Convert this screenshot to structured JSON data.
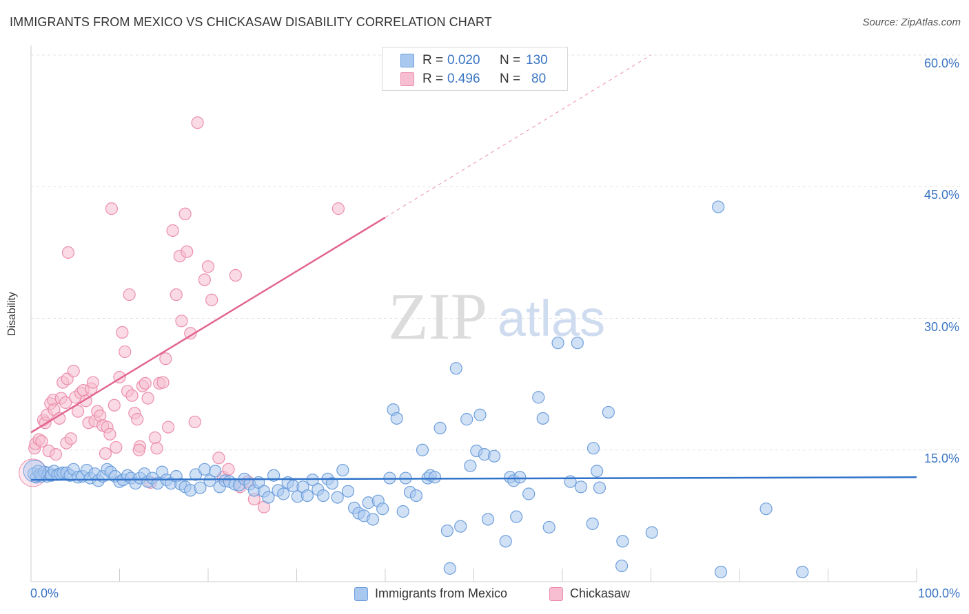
{
  "title": "IMMIGRANTS FROM MEXICO VS CHICKASAW DISABILITY CORRELATION CHART",
  "source": "Source: ZipAtlas.com",
  "colors": {
    "blue_fill": "#a9c8ef",
    "blue_stroke": "#6e9fdc",
    "blue_line": "#2f72c9",
    "pink_fill": "#f6bed0",
    "pink_stroke": "#ec8eac",
    "pink_line": "#e2668f",
    "grid": "#e2e2e2",
    "text_blue": "#3a75c4"
  },
  "legend": {
    "series1": {
      "r_label": "R = ",
      "r_value": "0.020",
      "n_label": "N = ",
      "n_value": "130"
    },
    "series2": {
      "r_label": "R = ",
      "r_value": "0.496",
      "n_label": "N = ",
      "n_value": "80"
    }
  },
  "watermark": {
    "zip": "ZIP",
    "atlas": "atlas"
  },
  "chart_data": {
    "type": "scatter",
    "title": "IMMIGRANTS FROM MEXICO VS CHICKASAW DISABILITY CORRELATION CHART",
    "xlabel": "",
    "ylabel": "Disability",
    "xlim": [
      0,
      100
    ],
    "ylim": [
      0,
      60
    ],
    "x_tick_labels": [
      "0.0%",
      "100.0%"
    ],
    "y_ticks": [
      15,
      30,
      45,
      60
    ],
    "y_tick_labels": [
      "15.0%",
      "30.0%",
      "45.0%",
      "60.0%"
    ],
    "grid": true,
    "legend_position": "top-center",
    "series": [
      {
        "name": "Immigrants from Mexico",
        "color": "blue",
        "R": 0.02,
        "N": 130,
        "trend": {
          "x": [
            0,
            100
          ],
          "y": [
            11.6,
            11.9
          ]
        },
        "points": [
          [
            0.3,
            12.3
          ],
          [
            0.6,
            11.9
          ],
          [
            0.8,
            12.6
          ],
          [
            1.0,
            12.2
          ],
          [
            1.2,
            12.0
          ],
          [
            1.5,
            12.5
          ],
          [
            1.8,
            12.0
          ],
          [
            2.0,
            12.4
          ],
          [
            2.3,
            12.1
          ],
          [
            2.6,
            12.6
          ],
          [
            3.0,
            12.2
          ],
          [
            3.3,
            12.3
          ],
          [
            3.6,
            12.4
          ],
          [
            4.0,
            12.4
          ],
          [
            4.4,
            12.1
          ],
          [
            4.8,
            12.8
          ],
          [
            5.3,
            11.9
          ],
          [
            5.8,
            12.0
          ],
          [
            6.3,
            12.7
          ],
          [
            6.7,
            11.8
          ],
          [
            7.2,
            12.3
          ],
          [
            7.6,
            11.5
          ],
          [
            8.1,
            12.0
          ],
          [
            8.6,
            12.8
          ],
          [
            9.0,
            12.5
          ],
          [
            9.5,
            12.0
          ],
          [
            10.0,
            11.4
          ],
          [
            10.4,
            11.6
          ],
          [
            10.9,
            12.1
          ],
          [
            11.3,
            11.8
          ],
          [
            11.8,
            11.2
          ],
          [
            12.3,
            11.8
          ],
          [
            12.8,
            12.3
          ],
          [
            13.2,
            11.4
          ],
          [
            13.7,
            11.8
          ],
          [
            14.3,
            11.2
          ],
          [
            14.8,
            12.5
          ],
          [
            15.3,
            11.6
          ],
          [
            15.8,
            11.2
          ],
          [
            16.4,
            12.0
          ],
          [
            16.9,
            11.1
          ],
          [
            17.4,
            10.8
          ],
          [
            18.0,
            10.4
          ],
          [
            18.6,
            12.2
          ],
          [
            19.1,
            10.7
          ],
          [
            19.6,
            12.8
          ],
          [
            20.2,
            11.5
          ],
          [
            20.8,
            12.6
          ],
          [
            21.3,
            10.8
          ],
          [
            21.9,
            11.5
          ],
          [
            22.4,
            11.4
          ],
          [
            23.0,
            11.1
          ],
          [
            23.5,
            11.0
          ],
          [
            24.1,
            11.7
          ],
          [
            24.7,
            11.1
          ],
          [
            25.2,
            10.4
          ],
          [
            25.7,
            11.3
          ],
          [
            26.3,
            10.3
          ],
          [
            26.8,
            9.6
          ],
          [
            27.4,
            12.1
          ],
          [
            27.9,
            10.4
          ],
          [
            28.5,
            10.0
          ],
          [
            29.0,
            11.3
          ],
          [
            29.6,
            10.9
          ],
          [
            30.1,
            9.7
          ],
          [
            30.7,
            10.8
          ],
          [
            31.2,
            9.8
          ],
          [
            31.8,
            11.6
          ],
          [
            32.4,
            10.5
          ],
          [
            33.0,
            9.8
          ],
          [
            33.5,
            11.7
          ],
          [
            34.0,
            11.2
          ],
          [
            34.6,
            9.6
          ],
          [
            35.2,
            12.7
          ],
          [
            35.8,
            10.3
          ],
          [
            36.5,
            8.4
          ],
          [
            37.0,
            7.8
          ],
          [
            37.6,
            7.5
          ],
          [
            38.1,
            9.0
          ],
          [
            38.6,
            7.1
          ],
          [
            39.2,
            9.2
          ],
          [
            39.7,
            8.3
          ],
          [
            40.5,
            11.8
          ],
          [
            40.9,
            19.6
          ],
          [
            41.3,
            18.6
          ],
          [
            42.0,
            8.0
          ],
          [
            42.3,
            11.8
          ],
          [
            42.8,
            10.2
          ],
          [
            43.5,
            9.8
          ],
          [
            44.2,
            15.0
          ],
          [
            44.8,
            11.8
          ],
          [
            45.1,
            12.1
          ],
          [
            45.6,
            11.9
          ],
          [
            46.2,
            17.5
          ],
          [
            47.0,
            5.8
          ],
          [
            47.3,
            1.5
          ],
          [
            48.0,
            24.3
          ],
          [
            48.5,
            6.3
          ],
          [
            49.2,
            18.5
          ],
          [
            49.6,
            13.2
          ],
          [
            50.3,
            14.9
          ],
          [
            50.7,
            19.0
          ],
          [
            51.2,
            14.5
          ],
          [
            51.6,
            7.1
          ],
          [
            52.3,
            14.3
          ],
          [
            53.6,
            4.6
          ],
          [
            54.1,
            11.9
          ],
          [
            54.5,
            11.5
          ],
          [
            54.8,
            7.4
          ],
          [
            55.2,
            11.9
          ],
          [
            56.2,
            10.0
          ],
          [
            57.3,
            21.0
          ],
          [
            57.8,
            18.6
          ],
          [
            58.5,
            6.2
          ],
          [
            59.5,
            27.2
          ],
          [
            61.7,
            27.2
          ],
          [
            60.9,
            11.4
          ],
          [
            62.1,
            10.8
          ],
          [
            63.4,
            6.6
          ],
          [
            63.5,
            15.2
          ],
          [
            63.9,
            12.6
          ],
          [
            64.2,
            10.7
          ],
          [
            65.2,
            19.3
          ],
          [
            66.7,
            1.8
          ],
          [
            66.8,
            4.6
          ],
          [
            70.1,
            5.6
          ],
          [
            77.6,
            42.7
          ],
          [
            77.9,
            1.1
          ],
          [
            83.0,
            8.3
          ],
          [
            87.1,
            1.1
          ]
        ]
      },
      {
        "name": "Chickasaw",
        "color": "pink",
        "R": 0.496,
        "N": 80,
        "trend": {
          "x": [
            0,
            40
          ],
          "y": [
            17.0,
            41.5
          ]
        },
        "trend_dashed": {
          "x": [
            40,
            70
          ],
          "y": [
            41.5,
            60.0
          ]
        },
        "points": [
          [
            0.4,
            15.2
          ],
          [
            0.5,
            15.7
          ],
          [
            0.9,
            16.2
          ],
          [
            1.2,
            16.0
          ],
          [
            1.4,
            18.4
          ],
          [
            1.6,
            18.1
          ],
          [
            1.8,
            19.0
          ],
          [
            2.0,
            14.9
          ],
          [
            2.2,
            20.3
          ],
          [
            2.5,
            20.7
          ],
          [
            2.6,
            19.6
          ],
          [
            2.8,
            14.5
          ],
          [
            3.2,
            18.6
          ],
          [
            3.4,
            20.9
          ],
          [
            3.6,
            22.7
          ],
          [
            3.9,
            20.4
          ],
          [
            4.0,
            15.8
          ],
          [
            4.1,
            23.1
          ],
          [
            4.2,
            37.5
          ],
          [
            4.5,
            16.3
          ],
          [
            4.8,
            24.0
          ],
          [
            5.0,
            21.0
          ],
          [
            5.3,
            19.4
          ],
          [
            5.6,
            21.5
          ],
          [
            5.9,
            21.8
          ],
          [
            6.2,
            20.6
          ],
          [
            6.5,
            18.1
          ],
          [
            6.8,
            22.0
          ],
          [
            7.0,
            22.7
          ],
          [
            7.2,
            18.3
          ],
          [
            7.5,
            19.4
          ],
          [
            7.8,
            18.9
          ],
          [
            8.1,
            17.8
          ],
          [
            8.4,
            14.6
          ],
          [
            8.6,
            17.6
          ],
          [
            8.9,
            16.8
          ],
          [
            9.1,
            42.5
          ],
          [
            9.4,
            20.1
          ],
          [
            9.6,
            15.3
          ],
          [
            10.0,
            23.3
          ],
          [
            10.3,
            28.4
          ],
          [
            10.6,
            26.2
          ],
          [
            10.9,
            21.7
          ],
          [
            11.1,
            32.7
          ],
          [
            11.4,
            21.2
          ],
          [
            11.7,
            19.2
          ],
          [
            12.0,
            18.5
          ],
          [
            12.3,
            15.4
          ],
          [
            12.6,
            22.3
          ],
          [
            12.9,
            22.6
          ],
          [
            13.2,
            20.9
          ],
          [
            13.5,
            11.3
          ],
          [
            14.0,
            16.4
          ],
          [
            14.2,
            15.2
          ],
          [
            14.5,
            22.6
          ],
          [
            14.9,
            22.7
          ],
          [
            15.2,
            25.4
          ],
          [
            15.5,
            17.6
          ],
          [
            16.0,
            40.0
          ],
          [
            16.4,
            32.7
          ],
          [
            16.8,
            37.1
          ],
          [
            17.0,
            29.7
          ],
          [
            17.4,
            41.9
          ],
          [
            17.6,
            37.6
          ],
          [
            18.0,
            28.3
          ],
          [
            18.5,
            18.2
          ],
          [
            18.8,
            52.3
          ],
          [
            19.6,
            34.4
          ],
          [
            20.0,
            35.9
          ],
          [
            20.4,
            32.1
          ],
          [
            21.2,
            14.1
          ],
          [
            21.7,
            11.9
          ],
          [
            22.3,
            12.8
          ],
          [
            23.1,
            34.9
          ],
          [
            23.6,
            10.8
          ],
          [
            24.5,
            11.4
          ],
          [
            25.2,
            9.4
          ],
          [
            26.3,
            8.5
          ],
          [
            34.7,
            42.5
          ],
          [
            12.2,
            15.0
          ]
        ]
      }
    ]
  },
  "bottom_legend": {
    "series1": "Immigrants from Mexico",
    "series2": "Chickasaw"
  }
}
